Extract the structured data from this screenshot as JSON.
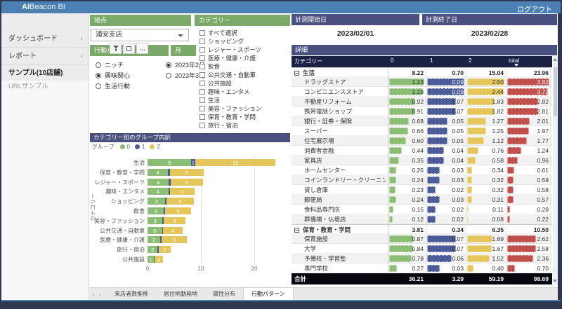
{
  "colors": {
    "topbar": "#4b80b4",
    "frame": "#2c3950",
    "header_green": "#7aa96a",
    "header_navy": "#4a5180",
    "table_header_navy": "#1b2144",
    "group0_green": "#8cbd74",
    "group1_blue": "#4b5c99",
    "group2_yellow": "#e5c65b",
    "total_red": "#c1504c"
  },
  "topbar": {
    "brand_bold": "AI",
    "brand_rest": "Beacon BI",
    "logout_label": "ログアウト"
  },
  "sidebar": {
    "items": [
      {
        "label": "ダッシュボード",
        "chevron": "‹",
        "style": "section"
      },
      {
        "label": "レポート",
        "chevron": "‹",
        "style": "section"
      },
      {
        "label": "サンプル(10店舗)",
        "chevron": "",
        "style": "active-page"
      },
      {
        "label": "URLサンプル",
        "chevron": "",
        "style": "muted"
      }
    ]
  },
  "filters": {
    "location": {
      "header": "地点",
      "value": "浦安支店"
    },
    "behavior": {
      "header": "行動パターン",
      "options": [
        "ニッチ",
        "興味関心",
        "生活行動"
      ],
      "selected": "興味関心"
    },
    "month": {
      "header": "月",
      "options": [
        "2023年2月",
        "2023年3月"
      ],
      "selected": "2023年2月"
    },
    "category": {
      "header": "カテゴリー",
      "options": [
        "すべて選択",
        "ショッピング",
        "レジャー・スポーツ",
        "医療・健康・介護",
        "飲食",
        "公共交通・自動車",
        "公共施設",
        "趣味・エンタメ",
        "生活",
        "美容・ファッション",
        "保育・教育・学問",
        "旅行・宿泊"
      ],
      "checked": []
    }
  },
  "measurement": {
    "start_label": "計測開始日",
    "start_value": "2023/02/01",
    "end_label": "計測終了日",
    "end_value": "2023/02/28"
  },
  "chart_data": {
    "type": "bar",
    "stacked": true,
    "title": "カテゴリー別のグループ内訳",
    "legend_title": "グループ",
    "legend": [
      "0",
      "1",
      "2"
    ],
    "ylabel": "カテゴリー",
    "xlabel": "",
    "xticks": [
      0,
      10,
      20
    ],
    "xlim": [
      0,
      24.5
    ],
    "grid": true,
    "legend_position": "top-left",
    "categories": [
      "生活",
      "保育・教育・学問",
      "レジャー・スポーツ",
      "趣味・エンタメ",
      "ショッピング",
      "飲食",
      "美容・ファッション",
      "公共交通・自動車",
      "医療・健康・介護",
      "旅行・宿泊",
      "公共施設"
    ],
    "series": [
      {
        "name": "0",
        "values": [
          8.2,
          3.8,
          4.0,
          3.9,
          3.3,
          3.0,
          2.8,
          2.7,
          2.4,
          1.9,
          1.2
        ]
      },
      {
        "name": "1",
        "values": [
          0.7,
          0.35,
          0.35,
          0.3,
          0.3,
          0.3,
          0.25,
          0.25,
          0.25,
          0.2,
          0.15
        ]
      },
      {
        "name": "2",
        "values": [
          15.1,
          6.35,
          6.0,
          4.6,
          5.1,
          4.9,
          4.05,
          3.65,
          4.75,
          2.2,
          1.55
        ]
      }
    ],
    "bar_labels": [
      [
        "8",
        "1",
        "15"
      ],
      [
        "4",
        "",
        "6"
      ],
      [
        "4",
        "",
        "6"
      ],
      [
        "4",
        "",
        "5"
      ],
      [
        "3",
        "",
        "5"
      ],
      [
        "3",
        "",
        "5"
      ],
      [
        "3",
        "",
        "4"
      ],
      [
        "3",
        "",
        "4"
      ],
      [
        "2",
        "",
        "5"
      ],
      [
        "2",
        "",
        "2"
      ],
      [
        "1",
        "",
        "2"
      ]
    ]
  },
  "detail_table": {
    "title": "詳細",
    "columns": [
      "カテゴリー",
      "0",
      "1",
      "2",
      "total"
    ],
    "sort_column": "total",
    "column_max": [
      1.23,
      0.09,
      2.5,
      3.82
    ],
    "rows": [
      {
        "name": "生活",
        "type": "parent",
        "values": [
          "8.22",
          "0.70",
          "15.04",
          "23.96"
        ]
      },
      {
        "name": "ドラッグストア",
        "type": "child",
        "values": [
          "1.23",
          "0.09",
          "2.50",
          "3.82"
        ]
      },
      {
        "name": "コンビニエンスストア",
        "type": "child",
        "values": [
          "1.19",
          "0.09",
          "2.44",
          "3.72"
        ]
      },
      {
        "name": "不動産リフォーム",
        "type": "child",
        "values": [
          "0.92",
          "0.07",
          "1.83",
          "2.82"
        ]
      },
      {
        "name": "携帯電話ショップ",
        "type": "child",
        "values": [
          "0.91",
          "0.07",
          "1.82",
          "2.81"
        ]
      },
      {
        "name": "銀行・証券・保険",
        "type": "child",
        "values": [
          "0.68",
          "0.05",
          "1.27",
          "2.01"
        ]
      },
      {
        "name": "スーパー",
        "type": "child",
        "values": [
          "0.66",
          "0.05",
          "1.25",
          "1.97"
        ]
      },
      {
        "name": "住宅展示場",
        "type": "child",
        "values": [
          "0.60",
          "0.05",
          "1.12",
          "1.77"
        ]
      },
      {
        "name": "消費者金融",
        "type": "child",
        "values": [
          "0.44",
          "0.04",
          "0.76",
          "1.24"
        ]
      },
      {
        "name": "家具店",
        "type": "child",
        "values": [
          "0.35",
          "0.04",
          "0.58",
          "0.96"
        ]
      },
      {
        "name": "ホームセンター",
        "type": "child",
        "values": [
          "0.25",
          "0.03",
          "0.34",
          "0.61"
        ]
      },
      {
        "name": "コインランドリー・クリーニング店",
        "type": "child",
        "values": [
          "0.24",
          "0.03",
          "0.32",
          "0.59"
        ]
      },
      {
        "name": "貸し倉庫",
        "type": "child",
        "values": [
          "0.23",
          "0.02",
          "0.32",
          "0.58"
        ]
      },
      {
        "name": "郵便局",
        "type": "child",
        "values": [
          "0.24",
          "0.03",
          "0.31",
          "0.57"
        ]
      },
      {
        "name": "食料品専門店",
        "type": "child",
        "values": [
          "0.15",
          "0.02",
          "0.11",
          "0.28"
        ]
      },
      {
        "name": "葬儀場・仏壇店",
        "type": "child",
        "values": [
          "0.12",
          "0.02",
          "0.08",
          "0.22"
        ]
      },
      {
        "name": "保育・教育・学問",
        "type": "parent",
        "values": [
          "3.81",
          "0.34",
          "6.35",
          "10.50"
        ]
      },
      {
        "name": "保育施設",
        "type": "child",
        "values": [
          "0.87",
          "0.07",
          "1.69",
          "2.62"
        ]
      },
      {
        "name": "大学",
        "type": "child",
        "values": [
          "0.84",
          "0.07",
          "1.67",
          "2.58"
        ]
      },
      {
        "name": "予備校・学習塾",
        "type": "child",
        "values": [
          "0.78",
          "0.06",
          "1.52",
          "2.36"
        ]
      },
      {
        "name": "専門学校",
        "type": "child",
        "values": [
          "0.27",
          "0.03",
          "0.40",
          "0.70"
        ]
      }
    ],
    "total_row": {
      "name": "合計",
      "values": [
        "36.21",
        "3.29",
        "59.19",
        "98.69"
      ]
    }
  },
  "tabs": {
    "prev": "‹",
    "next": "›",
    "items": [
      "来店者数推移",
      "居住地勤務地",
      "属性分布",
      "行動パターン"
    ],
    "active": "行動パターン"
  }
}
